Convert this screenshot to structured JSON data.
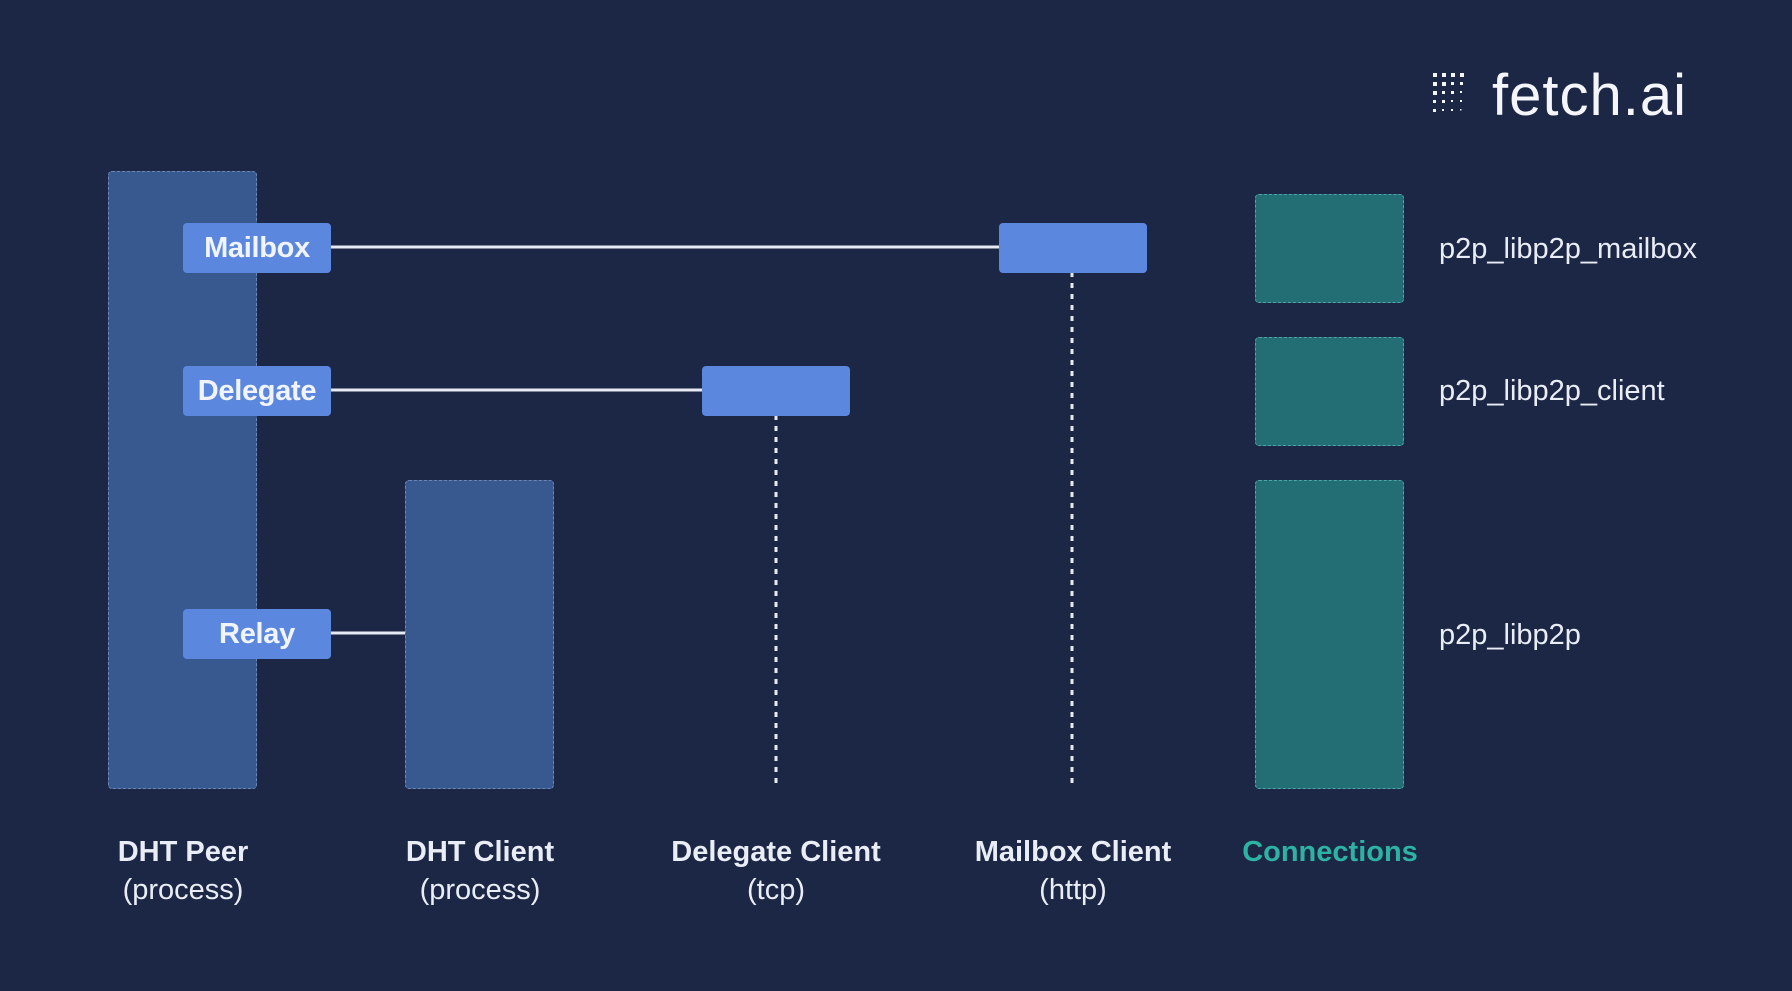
{
  "logo": {
    "text": "fetch.ai"
  },
  "nodes": {
    "mailbox": "Mailbox",
    "delegate": "Delegate",
    "relay": "Relay"
  },
  "columns": [
    {
      "title": "DHT Peer",
      "subtitle": "(process)"
    },
    {
      "title": "DHT Client",
      "subtitle": "(process)"
    },
    {
      "title": "Delegate Client",
      "subtitle": "(tcp)"
    },
    {
      "title": "Mailbox Client",
      "subtitle": "(http)"
    },
    {
      "title": "Connections"
    }
  ],
  "connections": [
    "p2p_libp2p_mailbox",
    "p2p_libp2p_client",
    "p2p_libp2p"
  ],
  "colors": {
    "background": "#1c2645",
    "process_column": "#385890",
    "node": "#5b88de",
    "connection_box": "#236d74",
    "connections_title": "#2db3a4"
  }
}
